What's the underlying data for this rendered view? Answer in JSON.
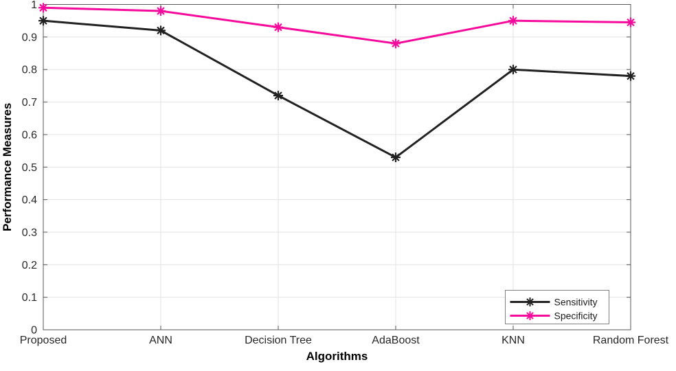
{
  "figure": {
    "background": "#FFFFFF"
  },
  "chart_data": {
    "type": "line",
    "title": "",
    "xlabel": "Algorithms",
    "ylabel": "Performance Measures",
    "categories": [
      "Proposed",
      "ANN",
      "Decision Tree",
      "AdaBoost",
      "KNN",
      "Random Forest"
    ],
    "series": [
      {
        "name": "Sensitivity",
        "color": "#212121",
        "marker": "asterisk",
        "values": [
          0.95,
          0.92,
          0.72,
          0.53,
          0.8,
          0.78
        ]
      },
      {
        "name": "Specificity",
        "color": "#F50A9B",
        "marker": "asterisk",
        "values": [
          0.99,
          0.98,
          0.93,
          0.88,
          0.95,
          0.945
        ]
      }
    ],
    "ylim": [
      0,
      1
    ],
    "yticks": [
      0,
      0.1,
      0.2,
      0.3,
      0.4,
      0.5,
      0.6,
      0.7,
      0.8,
      0.9,
      1
    ],
    "ytick_labels": [
      "0",
      "0.1",
      "0.2",
      "0.3",
      "0.4",
      "0.5",
      "0.6",
      "0.7",
      "0.8",
      "0.9",
      "1"
    ],
    "grid": true,
    "legend": {
      "position": "bottom-right",
      "entries": [
        "Sensitivity",
        "Specificity"
      ],
      "border_color": "#7F7F7F",
      "background": "#FFFFFF"
    }
  },
  "styles": {
    "axis_color": "#565656",
    "grid_color": "#E2E2E2",
    "tick_label_color": "#262626",
    "axis_label_color": "#000000",
    "legend_text_color": "#1A1A1A"
  }
}
